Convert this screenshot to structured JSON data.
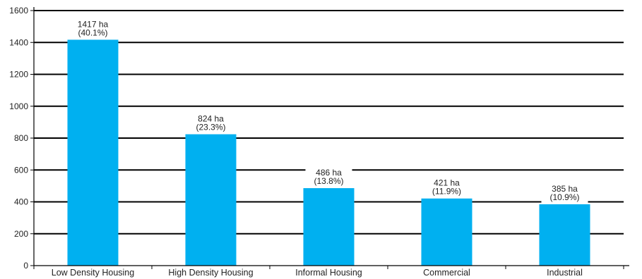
{
  "chart_data": {
    "type": "bar",
    "title": "",
    "xlabel": "",
    "ylabel": "",
    "categories": [
      "Low Density Housing",
      "High Density Housing",
      "Informal Housing",
      "Commercial",
      "Industrial"
    ],
    "values": [
      1417,
      824,
      486,
      421,
      385
    ],
    "data_labels": [
      [
        "1417 ha",
        "(40.1%)"
      ],
      [
        "824 ha",
        "(23.3%)"
      ],
      [
        "486 ha",
        "(13.8%)"
      ],
      [
        "421 ha",
        "(11.9%)"
      ],
      [
        "385 ha",
        "(10.9%)"
      ]
    ],
    "ylim": [
      0,
      1600
    ],
    "yticks": [
      "0",
      "200",
      "400",
      "600",
      "800",
      "1000",
      "1200",
      "1400",
      "1600"
    ],
    "grid": true,
    "bar_color": "#00b0f0",
    "legend": "none"
  }
}
